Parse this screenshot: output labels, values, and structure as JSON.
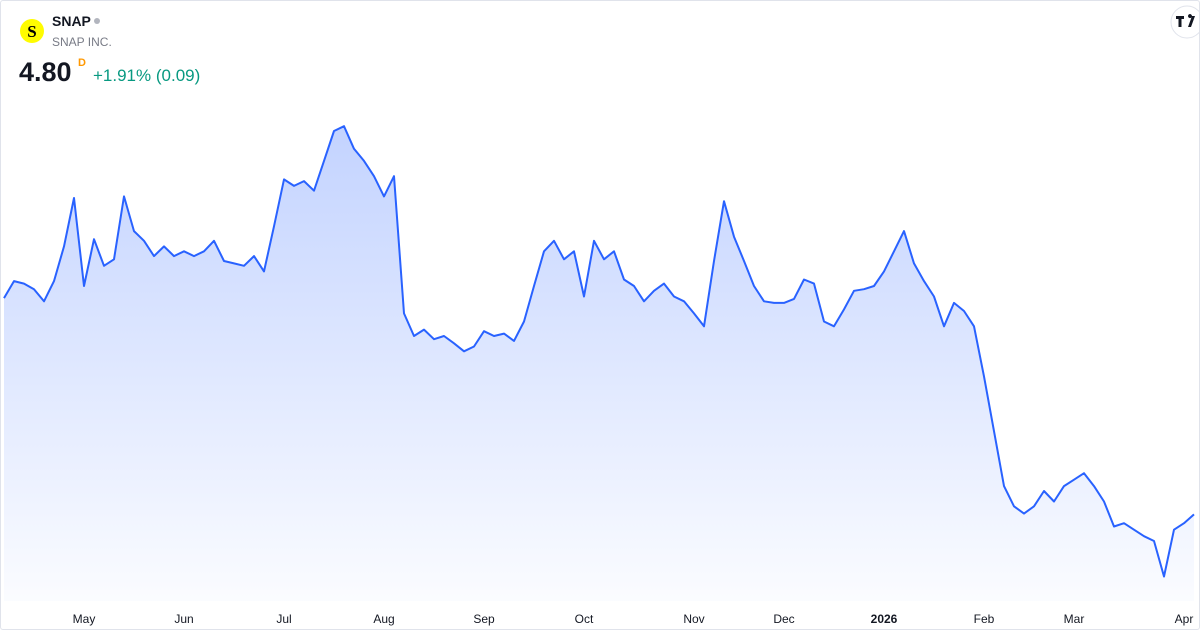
{
  "header": {
    "logo_letter": "S",
    "symbol": "SNAP",
    "name": "SNAP INC.",
    "price": "4.80",
    "interval": "D",
    "change": "+1.91% (0.09)"
  },
  "chart_data": {
    "type": "area",
    "categories": [
      null,
      null,
      null,
      null,
      null,
      null,
      null,
      null,
      "May",
      null,
      null,
      null,
      null,
      null,
      null,
      null,
      null,
      null,
      "Jun",
      null,
      null,
      null,
      null,
      null,
      null,
      null,
      null,
      null,
      "Jul",
      null,
      null,
      null,
      null,
      null,
      null,
      null,
      null,
      null,
      "Aug",
      null,
      null,
      null,
      null,
      null,
      null,
      null,
      null,
      null,
      "Sep",
      null,
      null,
      null,
      null,
      null,
      null,
      null,
      null,
      null,
      "Oct",
      null,
      null,
      null,
      null,
      null,
      null,
      null,
      null,
      null,
      null,
      "Nov",
      null,
      null,
      null,
      null,
      null,
      null,
      null,
      null,
      "Dec",
      null,
      null,
      null,
      null,
      null,
      null,
      null,
      null,
      null,
      "2026",
      null,
      null,
      null,
      null,
      null,
      null,
      null,
      null,
      null,
      "Feb",
      null,
      null,
      null,
      null,
      null,
      null,
      null,
      null,
      "Mar",
      null,
      null,
      null,
      null,
      null,
      null,
      null,
      null,
      null,
      null,
      "Apr",
      null
    ],
    "series": [
      {
        "color": "#2962ff",
        "values": [
          7.48,
          7.69,
          7.66,
          7.59,
          7.44,
          7.69,
          8.12,
          8.72,
          7.63,
          8.21,
          7.88,
          7.96,
          8.74,
          8.31,
          8.19,
          8.0,
          8.12,
          8.0,
          8.06,
          8.0,
          8.06,
          8.19,
          7.94,
          7.91,
          7.88,
          8.0,
          7.81,
          8.37,
          8.95,
          8.87,
          8.93,
          8.81,
          9.18,
          9.55,
          9.61,
          9.33,
          9.18,
          8.99,
          8.74,
          8.99,
          7.29,
          7.01,
          7.09,
          6.97,
          7.01,
          6.92,
          6.82,
          6.88,
          7.07,
          7.01,
          7.04,
          6.95,
          7.19,
          7.63,
          8.06,
          8.19,
          7.96,
          8.06,
          7.5,
          8.19,
          7.96,
          8.06,
          7.71,
          7.63,
          7.44,
          7.57,
          7.66,
          7.5,
          7.44,
          7.29,
          7.13,
          7.94,
          8.68,
          8.24,
          7.94,
          7.63,
          7.44,
          7.42,
          7.42,
          7.47,
          7.71,
          7.66,
          7.19,
          7.13,
          7.34,
          7.57,
          7.59,
          7.63,
          7.81,
          8.06,
          8.31,
          7.91,
          7.69,
          7.5,
          7.13,
          7.42,
          7.32,
          7.13,
          6.51,
          5.83,
          5.15,
          4.9,
          4.81,
          4.9,
          5.09,
          4.96,
          5.15,
          5.23,
          5.31,
          5.15,
          4.96,
          4.65,
          4.69,
          4.61,
          4.53,
          4.47,
          4.03,
          4.61,
          4.69,
          4.8
        ]
      }
    ],
    "ylim": [
      3.9,
      11.0
    ]
  }
}
